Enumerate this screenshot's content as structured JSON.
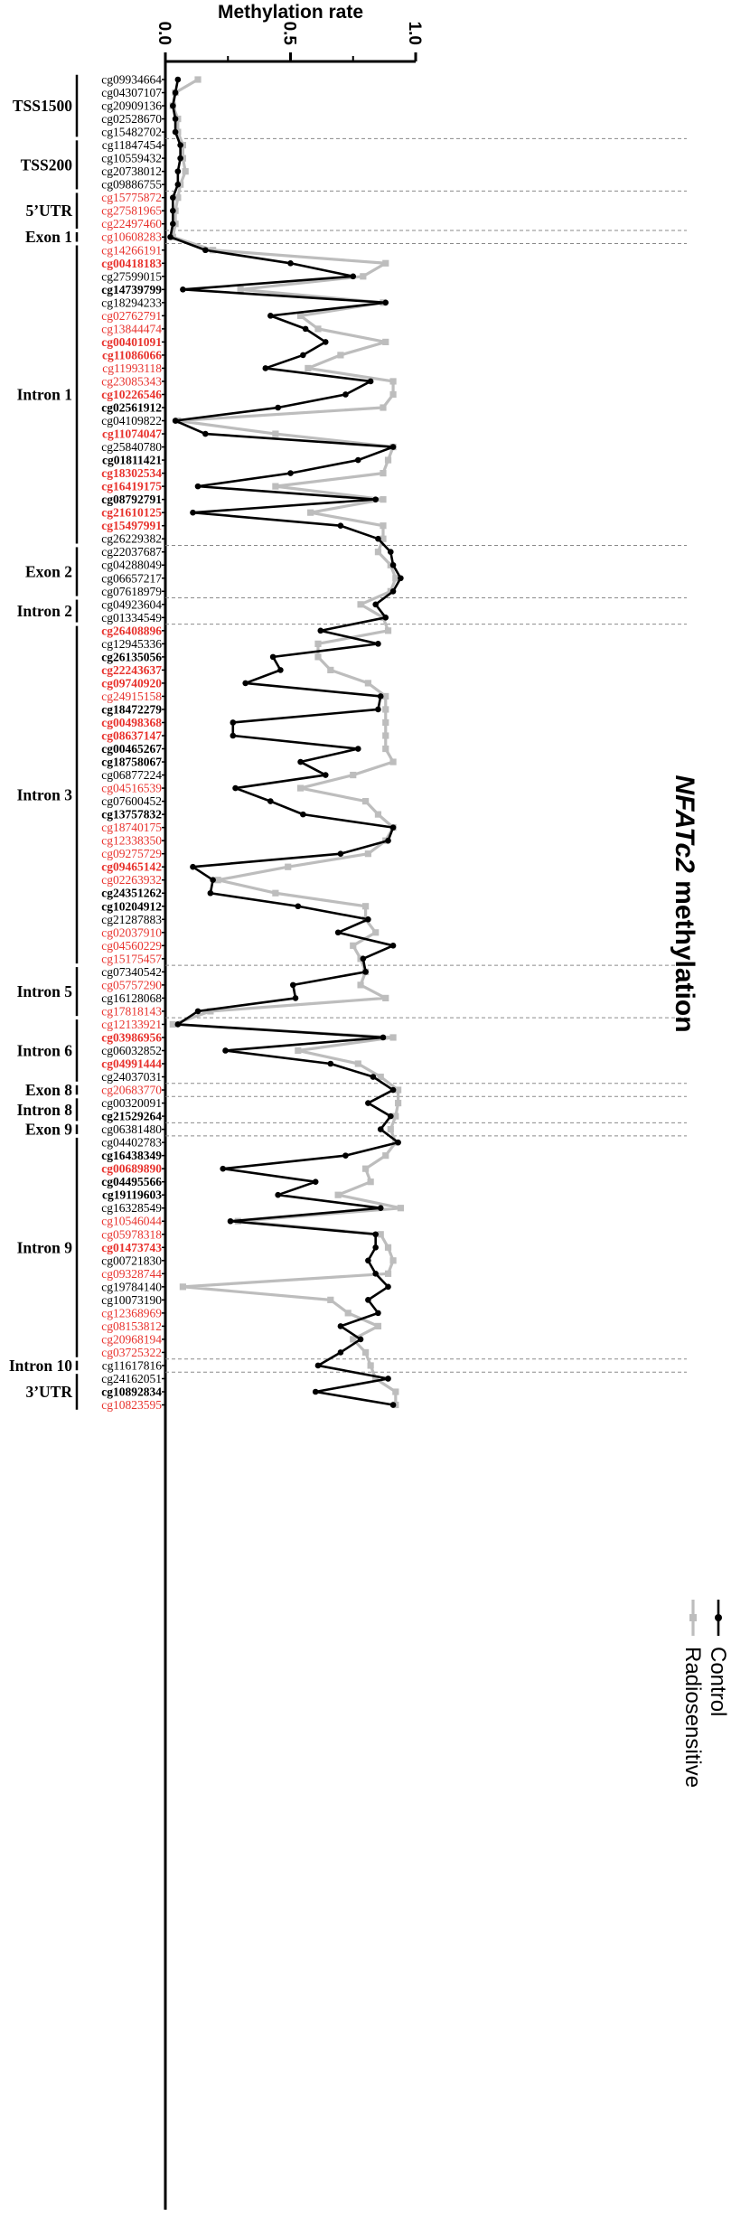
{
  "chart_data": {
    "type": "line",
    "orientation": "horizontal",
    "title": "NFATc2 methylation",
    "xlabel": "Methylation rate",
    "xlim": [
      0,
      1
    ],
    "xticks": [
      "0.0",
      "0.5",
      "1.0"
    ],
    "colors": {
      "Control": "#000000",
      "Radiosensitive": "#bdbdbd",
      "highlight_label": "#e8322d"
    },
    "legend": {
      "position": "bottom-right",
      "entries": [
        "Control",
        "Radiosensitive"
      ]
    },
    "probes": [
      {
        "id": "cg09934664",
        "color": "black",
        "bold": false
      },
      {
        "id": "cg04307107",
        "color": "black",
        "bold": false
      },
      {
        "id": "cg20909136",
        "color": "black",
        "bold": false
      },
      {
        "id": "cg02528670",
        "color": "black",
        "bold": false
      },
      {
        "id": "cg15482702",
        "color": "black",
        "bold": false
      },
      {
        "id": "cg11847454",
        "color": "black",
        "bold": false
      },
      {
        "id": "cg10559432",
        "color": "black",
        "bold": false
      },
      {
        "id": "cg20738012",
        "color": "black",
        "bold": false
      },
      {
        "id": "cg09886755",
        "color": "black",
        "bold": false
      },
      {
        "id": "cg15775872",
        "color": "red",
        "bold": false
      },
      {
        "id": "cg27581965",
        "color": "red",
        "bold": false
      },
      {
        "id": "cg22497460",
        "color": "red",
        "bold": false
      },
      {
        "id": "cg10608283",
        "color": "red",
        "bold": false
      },
      {
        "id": "cg14266191",
        "color": "red",
        "bold": false
      },
      {
        "id": "cg00418183",
        "color": "red",
        "bold": true
      },
      {
        "id": "cg27599015",
        "color": "black",
        "bold": false
      },
      {
        "id": "cg14739799",
        "color": "black",
        "bold": true
      },
      {
        "id": "cg18294233",
        "color": "black",
        "bold": false
      },
      {
        "id": "cg02762791",
        "color": "red",
        "bold": false
      },
      {
        "id": "cg13844474",
        "color": "red",
        "bold": false
      },
      {
        "id": "cg00401091",
        "color": "red",
        "bold": true
      },
      {
        "id": "cg11086066",
        "color": "red",
        "bold": true
      },
      {
        "id": "cg11993118",
        "color": "red",
        "bold": false
      },
      {
        "id": "cg23085343",
        "color": "red",
        "bold": false
      },
      {
        "id": "cg10226546",
        "color": "red",
        "bold": true
      },
      {
        "id": "cg02561912",
        "color": "black",
        "bold": true
      },
      {
        "id": "cg04109822",
        "color": "black",
        "bold": false
      },
      {
        "id": "cg11074047",
        "color": "red",
        "bold": true
      },
      {
        "id": "cg25840780",
        "color": "black",
        "bold": false
      },
      {
        "id": "cg01811421",
        "color": "black",
        "bold": true
      },
      {
        "id": "cg18302534",
        "color": "red",
        "bold": true
      },
      {
        "id": "cg16419175",
        "color": "red",
        "bold": true
      },
      {
        "id": "cg08792791",
        "color": "black",
        "bold": true
      },
      {
        "id": "cg21610125",
        "color": "red",
        "bold": true
      },
      {
        "id": "cg15497991",
        "color": "red",
        "bold": true
      },
      {
        "id": "cg26229382",
        "color": "black",
        "bold": false
      },
      {
        "id": "cg22037687",
        "color": "black",
        "bold": false
      },
      {
        "id": "cg04288049",
        "color": "black",
        "bold": false
      },
      {
        "id": "cg06657217",
        "color": "black",
        "bold": false
      },
      {
        "id": "cg07618979",
        "color": "black",
        "bold": false
      },
      {
        "id": "cg04923604",
        "color": "black",
        "bold": false
      },
      {
        "id": "cg01334549",
        "color": "black",
        "bold": false
      },
      {
        "id": "cg26408896",
        "color": "red",
        "bold": true
      },
      {
        "id": "cg12945336",
        "color": "black",
        "bold": false
      },
      {
        "id": "cg26135056",
        "color": "black",
        "bold": true
      },
      {
        "id": "cg22243637",
        "color": "red",
        "bold": true
      },
      {
        "id": "cg09740920",
        "color": "red",
        "bold": true
      },
      {
        "id": "cg24915158",
        "color": "red",
        "bold": false
      },
      {
        "id": "cg18472279",
        "color": "black",
        "bold": true
      },
      {
        "id": "cg00498368",
        "color": "red",
        "bold": true
      },
      {
        "id": "cg08637147",
        "color": "red",
        "bold": true
      },
      {
        "id": "cg00465267",
        "color": "black",
        "bold": true
      },
      {
        "id": "cg18758067",
        "color": "black",
        "bold": true
      },
      {
        "id": "cg06877224",
        "color": "black",
        "bold": false
      },
      {
        "id": "cg04516539",
        "color": "red",
        "bold": false
      },
      {
        "id": "cg07600452",
        "color": "black",
        "bold": false
      },
      {
        "id": "cg13757832",
        "color": "black",
        "bold": true
      },
      {
        "id": "cg18740175",
        "color": "red",
        "bold": false
      },
      {
        "id": "cg12338350",
        "color": "red",
        "bold": false
      },
      {
        "id": "cg09275729",
        "color": "red",
        "bold": false
      },
      {
        "id": "cg09465142",
        "color": "red",
        "bold": true
      },
      {
        "id": "cg02263932",
        "color": "red",
        "bold": false
      },
      {
        "id": "cg24351262",
        "color": "black",
        "bold": true
      },
      {
        "id": "cg10204912",
        "color": "black",
        "bold": true
      },
      {
        "id": "cg21287883",
        "color": "black",
        "bold": false
      },
      {
        "id": "cg02037910",
        "color": "red",
        "bold": false
      },
      {
        "id": "cg04560229",
        "color": "red",
        "bold": false
      },
      {
        "id": "cg15175457",
        "color": "red",
        "bold": false
      },
      {
        "id": "cg07340542",
        "color": "black",
        "bold": false
      },
      {
        "id": "cg05757290",
        "color": "red",
        "bold": false
      },
      {
        "id": "cg16128068",
        "color": "black",
        "bold": false
      },
      {
        "id": "cg17818143",
        "color": "red",
        "bold": false
      },
      {
        "id": "cg12133921",
        "color": "red",
        "bold": false
      },
      {
        "id": "cg03986956",
        "color": "red",
        "bold": true
      },
      {
        "id": "cg06032852",
        "color": "black",
        "bold": false
      },
      {
        "id": "cg04991444",
        "color": "red",
        "bold": true
      },
      {
        "id": "cg24037031",
        "color": "black",
        "bold": false
      },
      {
        "id": "cg20683770",
        "color": "red",
        "bold": false
      },
      {
        "id": "cg00320091",
        "color": "black",
        "bold": false
      },
      {
        "id": "cg21529264",
        "color": "black",
        "bold": true
      },
      {
        "id": "cg06381480",
        "color": "black",
        "bold": false
      },
      {
        "id": "cg04402783",
        "color": "black",
        "bold": false
      },
      {
        "id": "cg16438349",
        "color": "black",
        "bold": true
      },
      {
        "id": "cg00689890",
        "color": "red",
        "bold": true
      },
      {
        "id": "cg04495566",
        "color": "black",
        "bold": true
      },
      {
        "id": "cg19119603",
        "color": "black",
        "bold": true
      },
      {
        "id": "cg16328549",
        "color": "black",
        "bold": false
      },
      {
        "id": "cg10546044",
        "color": "red",
        "bold": false
      },
      {
        "id": "cg05978318",
        "color": "red",
        "bold": false
      },
      {
        "id": "cg01473743",
        "color": "red",
        "bold": true
      },
      {
        "id": "cg00721830",
        "color": "black",
        "bold": false
      },
      {
        "id": "cg09328744",
        "color": "red",
        "bold": false
      },
      {
        "id": "cg19784140",
        "color": "black",
        "bold": false
      },
      {
        "id": "cg10073190",
        "color": "black",
        "bold": false
      },
      {
        "id": "cg12368969",
        "color": "red",
        "bold": false
      },
      {
        "id": "cg08153812",
        "color": "red",
        "bold": false
      },
      {
        "id": "cg20968194",
        "color": "red",
        "bold": false
      },
      {
        "id": "cg03725322",
        "color": "red",
        "bold": false
      },
      {
        "id": "cg11617816",
        "color": "black",
        "bold": false
      },
      {
        "id": "cg24162051",
        "color": "black",
        "bold": false
      },
      {
        "id": "cg10892834",
        "color": "black",
        "bold": true
      },
      {
        "id": "cg10823595",
        "color": "red",
        "bold": false
      }
    ],
    "regions": [
      {
        "label": "TSS1500",
        "start": 0,
        "end": 4
      },
      {
        "label": "TSS200",
        "start": 5,
        "end": 8
      },
      {
        "label": "5’UTR",
        "start": 9,
        "end": 11
      },
      {
        "label": "Exon 1",
        "start": 12,
        "end": 12
      },
      {
        "label": "Intron 1",
        "start": 13,
        "end": 35
      },
      {
        "label": "Exon 2",
        "start": 36,
        "end": 39
      },
      {
        "label": "Intron 2",
        "start": 40,
        "end": 41
      },
      {
        "label": "Intron 3",
        "start": 42,
        "end": 67
      },
      {
        "label": "Intron 5",
        "start": 68,
        "end": 71
      },
      {
        "label": "Intron 6",
        "start": 72,
        "end": 76
      },
      {
        "label": "Exon 8",
        "start": 77,
        "end": 77
      },
      {
        "label": "Intron 8",
        "start": 78,
        "end": 79
      },
      {
        "label": "Exon 9",
        "start": 80,
        "end": 80
      },
      {
        "label": "Intron 9",
        "start": 81,
        "end": 97
      },
      {
        "label": "Intron 10",
        "start": 98,
        "end": 98
      },
      {
        "label": "3’UTR",
        "start": 99,
        "end": 101
      }
    ],
    "series": [
      {
        "name": "Control",
        "values": [
          0.05,
          0.04,
          0.03,
          0.04,
          0.04,
          0.06,
          0.06,
          0.05,
          0.05,
          0.03,
          0.03,
          0.03,
          0.02,
          0.16,
          0.5,
          0.75,
          0.07,
          0.88,
          0.42,
          0.56,
          0.64,
          0.55,
          0.4,
          0.82,
          0.72,
          0.45,
          0.04,
          0.16,
          0.91,
          0.77,
          0.5,
          0.13,
          0.84,
          0.11,
          0.7,
          0.85,
          0.9,
          0.91,
          0.94,
          0.91,
          0.84,
          0.88,
          0.62,
          0.85,
          0.43,
          0.46,
          0.32,
          0.86,
          0.85,
          0.27,
          0.27,
          0.77,
          0.54,
          0.64,
          0.28,
          0.42,
          0.55,
          0.91,
          0.89,
          0.7,
          0.11,
          0.19,
          0.18,
          0.53,
          0.81,
          0.69,
          0.91,
          0.79,
          0.8,
          0.51,
          0.52,
          0.13,
          0.05,
          0.87,
          0.24,
          0.66,
          0.83,
          0.91,
          0.81,
          0.9,
          0.86,
          0.93,
          0.72,
          0.23,
          0.6,
          0.45,
          0.86,
          0.26,
          0.84,
          0.84,
          0.81,
          0.84,
          0.89,
          0.81,
          0.85,
          0.7,
          0.78,
          0.7,
          0.61,
          0.89,
          0.6,
          0.91
        ]
      },
      {
        "name": "Radiosensitive",
        "values": [
          0.13,
          0.04,
          0.03,
          0.05,
          0.05,
          0.07,
          0.07,
          0.08,
          0.06,
          0.05,
          0.04,
          0.04,
          0.03,
          0.19,
          0.88,
          0.79,
          0.3,
          0.87,
          0.54,
          0.61,
          0.88,
          0.7,
          0.57,
          0.91,
          0.91,
          0.87,
          0.05,
          0.44,
          0.91,
          0.89,
          0.87,
          0.44,
          0.87,
          0.58,
          0.87,
          0.87,
          0.85,
          0.9,
          0.92,
          0.9,
          0.78,
          0.87,
          0.89,
          0.61,
          0.61,
          0.66,
          0.81,
          0.88,
          0.88,
          0.88,
          0.88,
          0.88,
          0.91,
          0.75,
          0.54,
          0.8,
          0.85,
          0.91,
          0.88,
          0.81,
          0.49,
          0.21,
          0.44,
          0.8,
          0.8,
          0.84,
          0.75,
          0.78,
          0.8,
          0.78,
          0.88,
          0.18,
          0.03,
          0.91,
          0.53,
          0.77,
          0.86,
          0.93,
          0.93,
          0.92,
          0.9,
          0.92,
          0.88,
          0.8,
          0.82,
          0.69,
          0.94,
          0.29,
          0.86,
          0.89,
          0.91,
          0.89,
          0.07,
          0.66,
          0.73,
          0.85,
          0.75,
          0.8,
          0.82,
          0.84,
          0.92,
          0.92
        ]
      }
    ]
  }
}
